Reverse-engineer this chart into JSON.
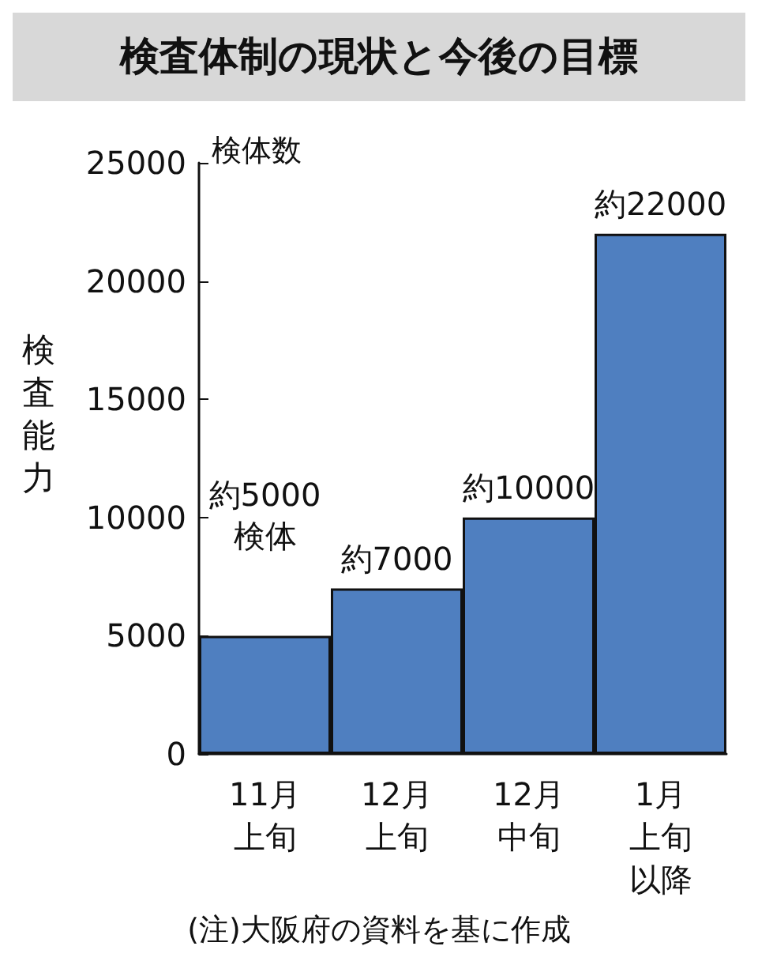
{
  "chart_data": {
    "type": "bar",
    "title": "検査体制の現状と今後の目標",
    "ylabel": "検査能力",
    "annotations": [
      "検体数",
      "(注)大阪府の資料を基に作成"
    ],
    "categories": [
      "11月上旬",
      "12月上旬",
      "12月中旬",
      "1月上旬以降"
    ],
    "values": [
      5000,
      7000,
      10000,
      22000
    ],
    "color": "#4f7fc0",
    "value_labels": [
      "約5000\n検体",
      "約7000",
      "約10000",
      "約22000"
    ],
    "ylim": [
      0,
      25000
    ],
    "yticks": [
      0,
      5000,
      10000,
      15000,
      20000,
      25000
    ],
    "grid": false
  }
}
